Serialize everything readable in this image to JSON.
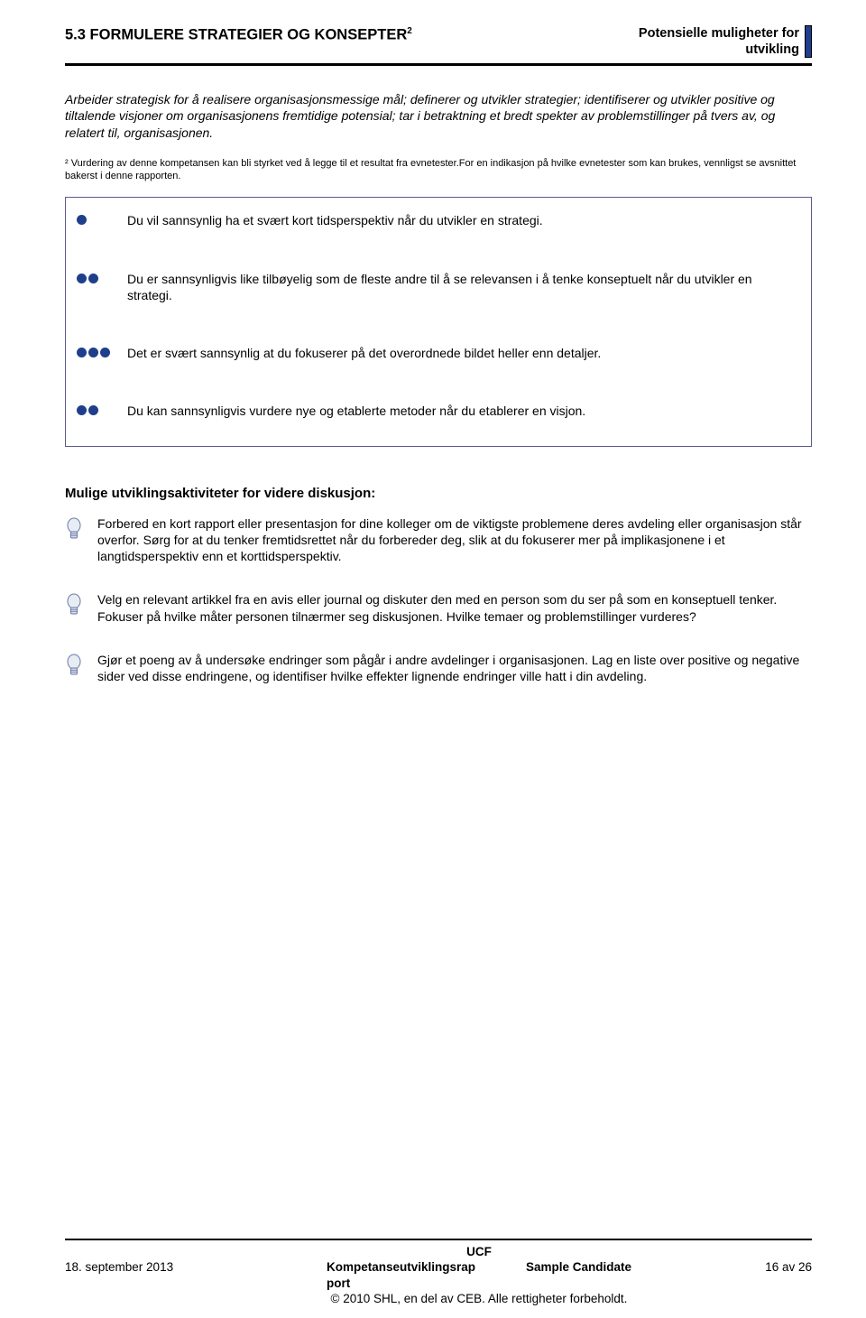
{
  "header": {
    "section_number": "5.3",
    "section_title": "FORMULERE STRATEGIER OG KONSEPTER",
    "superscript": "2",
    "right_line1": "Potensielle muligheter for",
    "right_line2": "utvikling",
    "stripe_color": "#1f3e8c"
  },
  "intro": "Arbeider strategisk for å realisere organisasjonsmessige mål; definerer og utvikler strategier; identifiserer og utvikler positive og tiltalende visjoner om organisasjonens fremtidige potensial; tar i betraktning et bredt spekter av problemstillinger på tvers av, og relatert til, organisasjonen.",
  "footnote": "² Vurdering av denne kompetansen kan bli styrket ved å legge til et resultat fra evnetester.For en indikasjon på hvilke evnetester som kan brukes, vennligst se avsnittet bakerst i denne rapporten.",
  "statements": [
    {
      "dots": 1,
      "text": "Du vil sannsynlig ha et svært kort tidsperspektiv når du utvikler en strategi."
    },
    {
      "dots": 2,
      "text": "Du er sannsynligvis like tilbøyelig som de fleste andre til å se relevansen i å tenke konseptuelt når du utvikler en strategi."
    },
    {
      "dots": 3,
      "text": "Det er svært sannsynlig at du fokuserer på det overordnede bildet heller enn detaljer."
    },
    {
      "dots": 2,
      "text": "Du kan sannsynligvis vurdere nye og etablerte metoder når du etablerer en visjon."
    }
  ],
  "dot_color": "#1f3e8c",
  "activities_title": "Mulige utviklingsaktiviteter for videre diskusjon:",
  "activities": [
    {
      "text": "Forbered en kort rapport eller presentasjon for dine kolleger om de viktigste problemene deres avdeling eller organisasjon står overfor. Sørg for at du tenker fremtidsrettet når du forbereder deg, slik at du fokuserer mer på implikasjonene i et langtidsperspektiv enn et korttidsperspektiv."
    },
    {
      "text": "Velg en relevant artikkel fra en avis eller journal og diskuter den med en person som du ser på som en konseptuell tenker. Fokuser på hvilke måter personen tilnærmer seg diskusjonen. Hvilke temaer og problemstillinger vurderes?"
    },
    {
      "text": "Gjør et poeng av å undersøke endringer som pågår i andre avdelinger i organisasjonen. Lag en liste over positive og negative sider ved disse endringene, og identifiser hvilke effekter lignende endringer ville hatt i din avdeling."
    }
  ],
  "bulb": {
    "fill": "#e8ecf3",
    "stroke": "#6a7aa8"
  },
  "footer": {
    "date": "18. september 2013",
    "center_title": "UCF",
    "center_line2a": "Kompetanseutviklingsrap",
    "center_line2b": "port",
    "center_sample": "Sample Candidate",
    "center_copy": "© 2010 SHL, en del av CEB. Alle rettigheter forbeholdt.",
    "page": "16 av 26"
  }
}
